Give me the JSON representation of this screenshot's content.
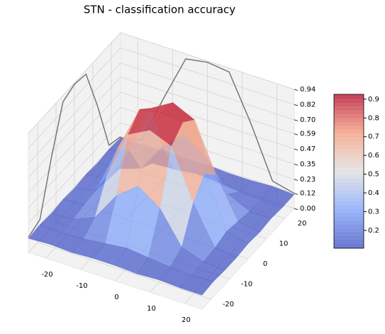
{
  "chart_data": {
    "type": "surface",
    "title": "STN - classification accuracy",
    "x": [
      -25,
      -18.75,
      -12.5,
      -6.25,
      0,
      6.25,
      12.5,
      18.75,
      25
    ],
    "y": [
      -25,
      -18.75,
      -12.5,
      -6.25,
      0,
      6.25,
      12.5,
      18.75,
      25
    ],
    "z": [
      [
        0.11,
        0.12,
        0.11,
        0.12,
        0.12,
        0.11,
        0.12,
        0.11,
        0.11
      ],
      [
        0.12,
        0.11,
        0.12,
        0.14,
        0.16,
        0.14,
        0.12,
        0.11,
        0.12
      ],
      [
        0.11,
        0.12,
        0.19,
        0.42,
        0.55,
        0.43,
        0.18,
        0.12,
        0.11
      ],
      [
        0.12,
        0.14,
        0.41,
        0.8,
        0.89,
        0.82,
        0.43,
        0.13,
        0.11
      ],
      [
        0.11,
        0.15,
        0.54,
        0.9,
        0.93,
        0.91,
        0.56,
        0.16,
        0.12
      ],
      [
        0.12,
        0.13,
        0.42,
        0.81,
        0.91,
        0.83,
        0.45,
        0.14,
        0.11
      ],
      [
        0.11,
        0.12,
        0.18,
        0.41,
        0.56,
        0.44,
        0.2,
        0.12,
        0.12
      ],
      [
        0.12,
        0.11,
        0.12,
        0.13,
        0.15,
        0.14,
        0.12,
        0.11,
        0.11
      ],
      [
        0.11,
        0.11,
        0.12,
        0.11,
        0.12,
        0.11,
        0.11,
        0.12,
        0.11
      ]
    ],
    "xlim": [
      -25,
      25
    ],
    "ylim": [
      -25,
      25
    ],
    "zlim": [
      0,
      0.94
    ],
    "xticks": [
      -20,
      -10,
      0,
      10,
      20
    ],
    "yticks": [
      -20,
      -10,
      0,
      10,
      20
    ],
    "zticks": [
      {
        "value": 0,
        "label": "0.00"
      },
      0.12,
      0.23,
      0.35,
      0.47,
      0.59,
      {
        "value": 0.7,
        "label": "0.70"
      },
      0.82,
      0.94
    ],
    "clim": [
      0.105,
      0.926
    ],
    "cticks": [
      0.2,
      0.3,
      0.4,
      0.5,
      0.6,
      0.7,
      0.8,
      0.9
    ],
    "colormap": [
      "#3b4cc0",
      "#7b9ff9",
      "#dddddd",
      "#f49a7b",
      "#b40426"
    ],
    "grid": true
  }
}
